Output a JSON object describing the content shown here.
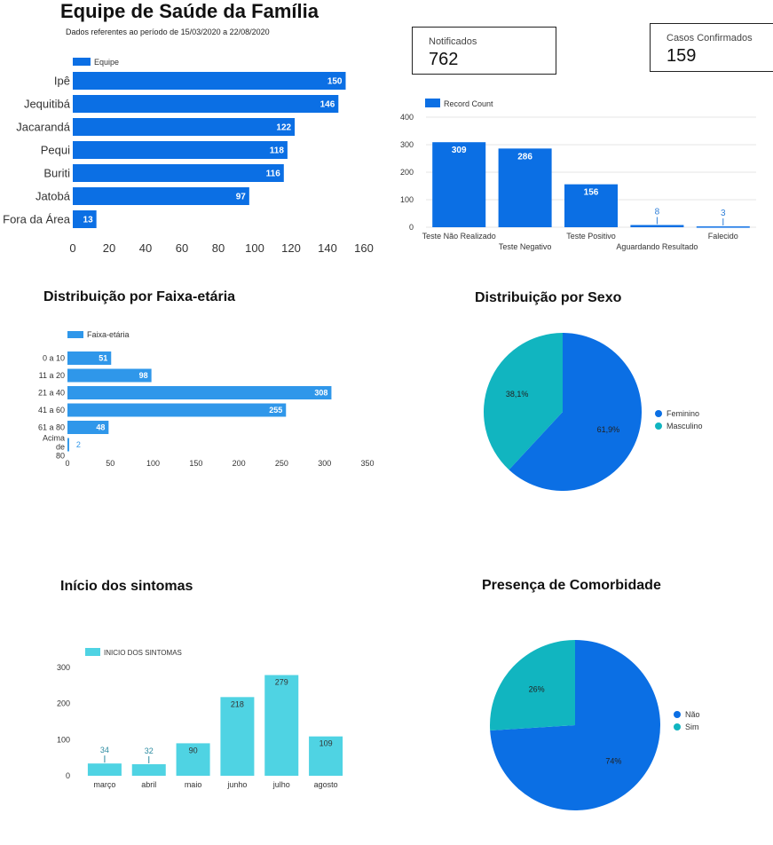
{
  "header": {
    "title": "Equipe de Saúde da Família",
    "subtitle": "Dados referentes ao período de 15/03/2020 a 22/08/2020"
  },
  "kpis": {
    "notificados": {
      "label": "Notificados",
      "value": "762"
    },
    "confirmados": {
      "label": "Casos Confirmados",
      "value": "159"
    }
  },
  "sections": {
    "faixa_etaria": "Distribuição por Faixa-etária",
    "sexo": "Distribuição por Sexo",
    "sintomas": "Início dos sintomas",
    "comorbidade": "Presença de Comorbidade"
  },
  "colors": {
    "primary": "#0b6fe4",
    "light_blue": "#2f97ea",
    "teal": "#11b5c0",
    "cyan": "#4fd3e3"
  },
  "chart_data": [
    {
      "id": "equipe",
      "type": "bar",
      "orientation": "horizontal",
      "categories": [
        "Ipê",
        "Jequitibá",
        "Jacarandá",
        "Pequi",
        "Buriti",
        "Jatobá",
        "Fora da Área"
      ],
      "series": [
        {
          "name": "Equipe",
          "values": [
            150,
            146,
            122,
            118,
            116,
            97,
            13
          ]
        }
      ],
      "xlim": [
        0,
        160
      ],
      "xticks": [
        "0",
        "20",
        "40",
        "60",
        "80",
        "100",
        "120",
        "140",
        "160"
      ],
      "legend": "top-left",
      "grid": false
    },
    {
      "id": "resultado",
      "type": "bar",
      "categories": [
        "Teste Não Realizado",
        "Teste Negativo",
        "Teste Positivo",
        "Aguardando Resultado",
        "Falecido"
      ],
      "series": [
        {
          "name": "Record Count",
          "values": [
            309,
            286,
            156,
            8,
            3
          ]
        }
      ],
      "ylim": [
        0,
        400
      ],
      "yticks": [
        "0",
        "100",
        "200",
        "300",
        "400"
      ],
      "legend": "top-left",
      "grid": true
    },
    {
      "id": "faixa",
      "type": "bar",
      "orientation": "horizontal",
      "categories": [
        "0 a 10",
        "11 a 20",
        "21 a 40",
        "41 a 60",
        "61 a 80",
        "Acima de 80"
      ],
      "series": [
        {
          "name": "Faixa-etária",
          "values": [
            51,
            98,
            308,
            255,
            48,
            2
          ]
        }
      ],
      "xlim": [
        0,
        350
      ],
      "xticks": [
        "0",
        "50",
        "100",
        "150",
        "200",
        "250",
        "300",
        "350"
      ],
      "legend": "top-left",
      "grid": false
    },
    {
      "id": "sexo",
      "type": "pie",
      "labels": [
        "Feminino",
        "Masculino"
      ],
      "values": [
        61.9,
        38.1
      ],
      "display": [
        "61,9%",
        "38,1%"
      ],
      "legend": "right"
    },
    {
      "id": "sintomas",
      "type": "bar",
      "categories": [
        "março",
        "abril",
        "maio",
        "junho",
        "julho",
        "agosto"
      ],
      "series": [
        {
          "name": "INICIO DOS SINTOMAS",
          "values": [
            34,
            32,
            90,
            218,
            279,
            109
          ]
        }
      ],
      "ylim": [
        0,
        300
      ],
      "yticks": [
        "0",
        "100",
        "200",
        "300"
      ],
      "legend": "top-left",
      "grid": false
    },
    {
      "id": "comorbidade",
      "type": "pie",
      "labels": [
        "Não",
        "Sim"
      ],
      "values": [
        74,
        26
      ],
      "display": [
        "74%",
        "26%"
      ],
      "legend": "right"
    }
  ]
}
